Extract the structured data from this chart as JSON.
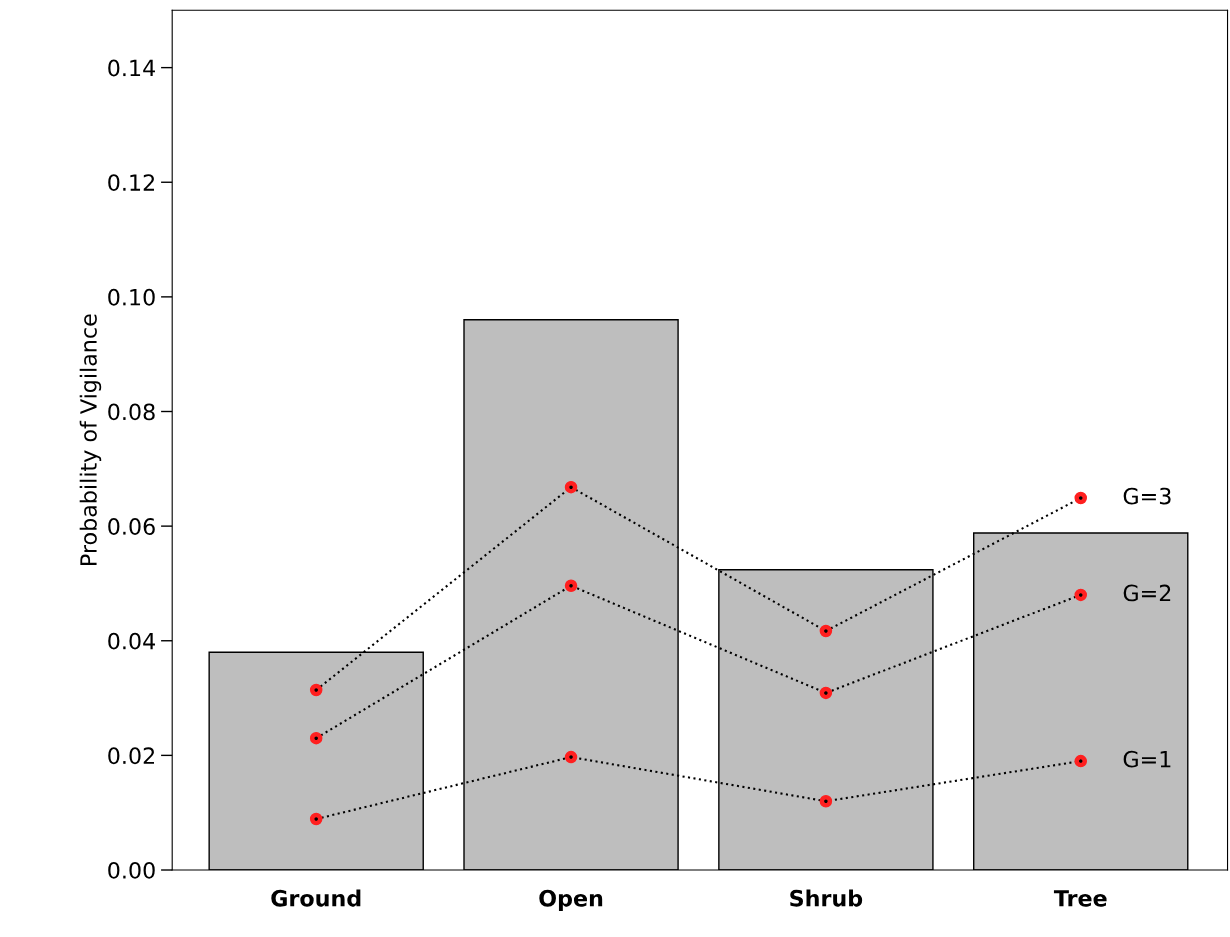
{
  "chart_data": {
    "type": "bar",
    "ylabel": "Probability of Vigilance",
    "categories": [
      "Ground",
      "Open",
      "Shrub",
      "Tree"
    ],
    "values": [
      0.038,
      0.096,
      0.0524,
      0.0588
    ],
    "color": "#bebebe",
    "series": [
      {
        "name": "G=3",
        "type": "line",
        "color": "#ff2020",
        "marker": "circle",
        "line_style": "dotted",
        "values": [
          0.0314,
          0.0668,
          0.0417,
          0.0649
        ]
      },
      {
        "name": "G=2",
        "type": "line",
        "color": "#ff2020",
        "marker": "circle",
        "line_style": "dotted",
        "values": [
          0.023,
          0.0496,
          0.0309,
          0.048
        ]
      },
      {
        "name": "G=1",
        "type": "line",
        "color": "#ff2020",
        "marker": "circle",
        "line_style": "dotted",
        "values": [
          0.0089,
          0.0197,
          0.012,
          0.019
        ]
      }
    ],
    "ylim": [
      0,
      0.15
    ],
    "yticks": [
      {
        "value": 0,
        "label": "0.00"
      },
      {
        "value": 0.02,
        "label": "0.02"
      },
      {
        "value": 0.04,
        "label": "0.04"
      },
      {
        "value": 0.06,
        "label": "0.06"
      },
      {
        "value": 0.08,
        "label": "0.08"
      },
      {
        "value": 0.1,
        "label": "0.10"
      },
      {
        "value": 0.12,
        "label": "0.12"
      },
      {
        "value": 0.14,
        "label": "0.14"
      }
    ],
    "grid": false
  }
}
